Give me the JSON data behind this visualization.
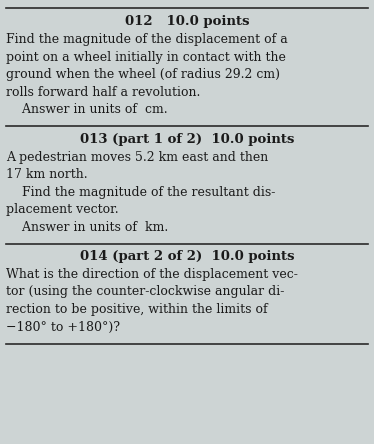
{
  "bg_color": "#cdd4d4",
  "text_color": "#1a1a1a",
  "sections": [
    {
      "header": "012   10.0 points",
      "body_lines": [
        "Find the magnitude of the displacement of a",
        "point on a wheel initially in contact with the",
        "ground when the wheel (of radius 29.2 cm)",
        "rolls forward half a revolution.",
        "    Answer in units of  cm."
      ]
    },
    {
      "header": "013 (part 1 of 2)  10.0 points",
      "body_lines": [
        "A pedestrian moves 5.2 km east and then",
        "17 km north.",
        "    Find the magnitude of the resultant dis-",
        "placement vector.",
        "    Answer in units of  km."
      ]
    },
    {
      "header": "014 (part 2 of 2)  10.0 points",
      "body_lines": [
        "What is the direction of the displacement vec-",
        "tor (using the counter-clockwise angular di-",
        "rection to be positive, within the limits of",
        "−180° to +180°)?"
      ]
    }
  ],
  "header_fontsize": 9.5,
  "body_fontsize": 9.0,
  "divider_color": "#2a2a2a",
  "font_family": "DejaVu Serif",
  "fig_width": 3.74,
  "fig_height": 4.44,
  "dpi": 100
}
